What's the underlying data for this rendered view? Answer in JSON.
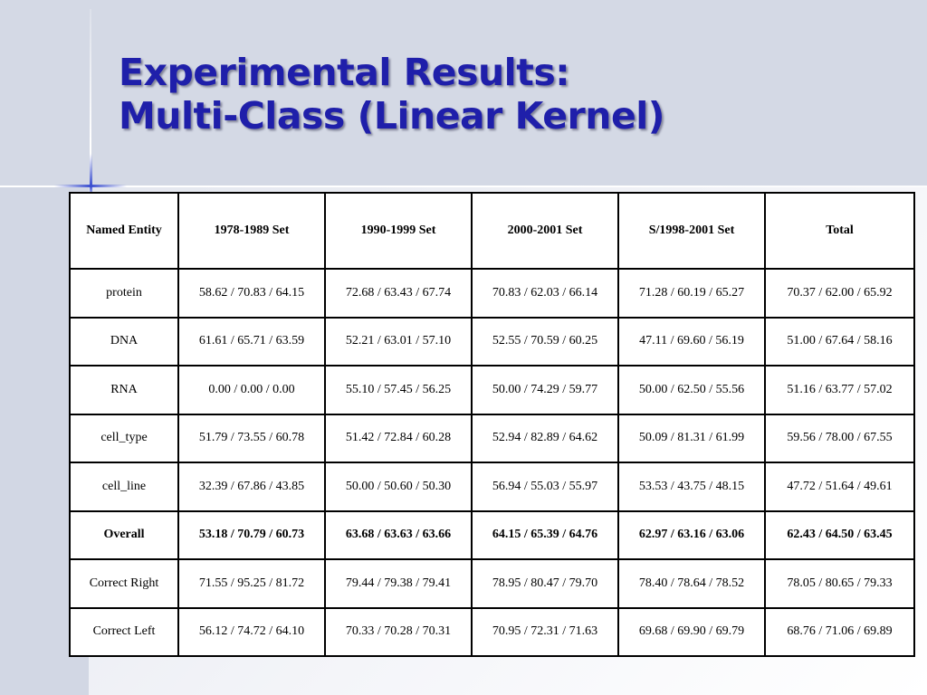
{
  "title": {
    "line1": "Experimental Results:",
    "line2": "Multi-Class (Linear Kernel)"
  },
  "table": {
    "headers": [
      "Named Entity",
      "1978-1989 Set",
      "1990-1999 Set",
      "2000-2001 Set",
      "S/1998-2001 Set",
      "Total"
    ],
    "rows": [
      [
        "protein",
        "58.62 / 70.83 / 64.15",
        "72.68 / 63.43 / 67.74",
        "70.83 / 62.03 / 66.14",
        "71.28 / 60.19 / 65.27",
        "70.37 / 62.00 / 65.92"
      ],
      [
        "DNA",
        "61.61 / 65.71 / 63.59",
        "52.21 / 63.01 / 57.10",
        "52.55 / 70.59 / 60.25",
        "47.11 / 69.60 / 56.19",
        "51.00 / 67.64 / 58.16"
      ],
      [
        "RNA",
        "0.00 /  0.00 /  0.00",
        "55.10 / 57.45 / 56.25",
        "50.00 / 74.29 / 59.77",
        "50.00 / 62.50 / 55.56",
        "51.16 / 63.77 / 57.02"
      ],
      [
        "cell_type",
        "51.79 / 73.55 / 60.78",
        "51.42 / 72.84 / 60.28",
        "52.94 / 82.89 / 64.62",
        "50.09 / 81.31 / 61.99",
        "59.56 / 78.00 / 67.55"
      ],
      [
        "cell_line",
        "32.39 / 67.86 / 43.85",
        "50.00 / 50.60 / 50.30",
        "56.94 / 55.03 / 55.97",
        "53.53 / 43.75 / 48.15",
        "47.72 / 51.64 / 49.61"
      ],
      [
        "Overall",
        "53.18 / 70.79 / 60.73",
        "63.68 / 63.63 / 63.66",
        "64.15 / 65.39 / 64.76",
        "62.97 / 63.16 / 63.06",
        "62.43 / 64.50 / 63.45"
      ],
      [
        "Correct Right",
        "71.55 / 95.25 / 81.72",
        "79.44 / 79.38 / 79.41",
        "78.95 / 80.47 / 79.70",
        "78.40 / 78.64 / 78.52",
        "78.05 / 80.65 / 79.33"
      ],
      [
        "Correct Left",
        "56.12 / 74.72 / 64.10",
        "70.33 / 70.28 / 70.31",
        "70.95 / 72.31 / 71.63",
        "69.68 / 69.90 / 69.79",
        "68.76 / 71.06 / 69.89"
      ]
    ]
  },
  "colors": {
    "title": "#1f1faa",
    "accent": "#3b4fd0",
    "background": "#d7dbe6"
  }
}
